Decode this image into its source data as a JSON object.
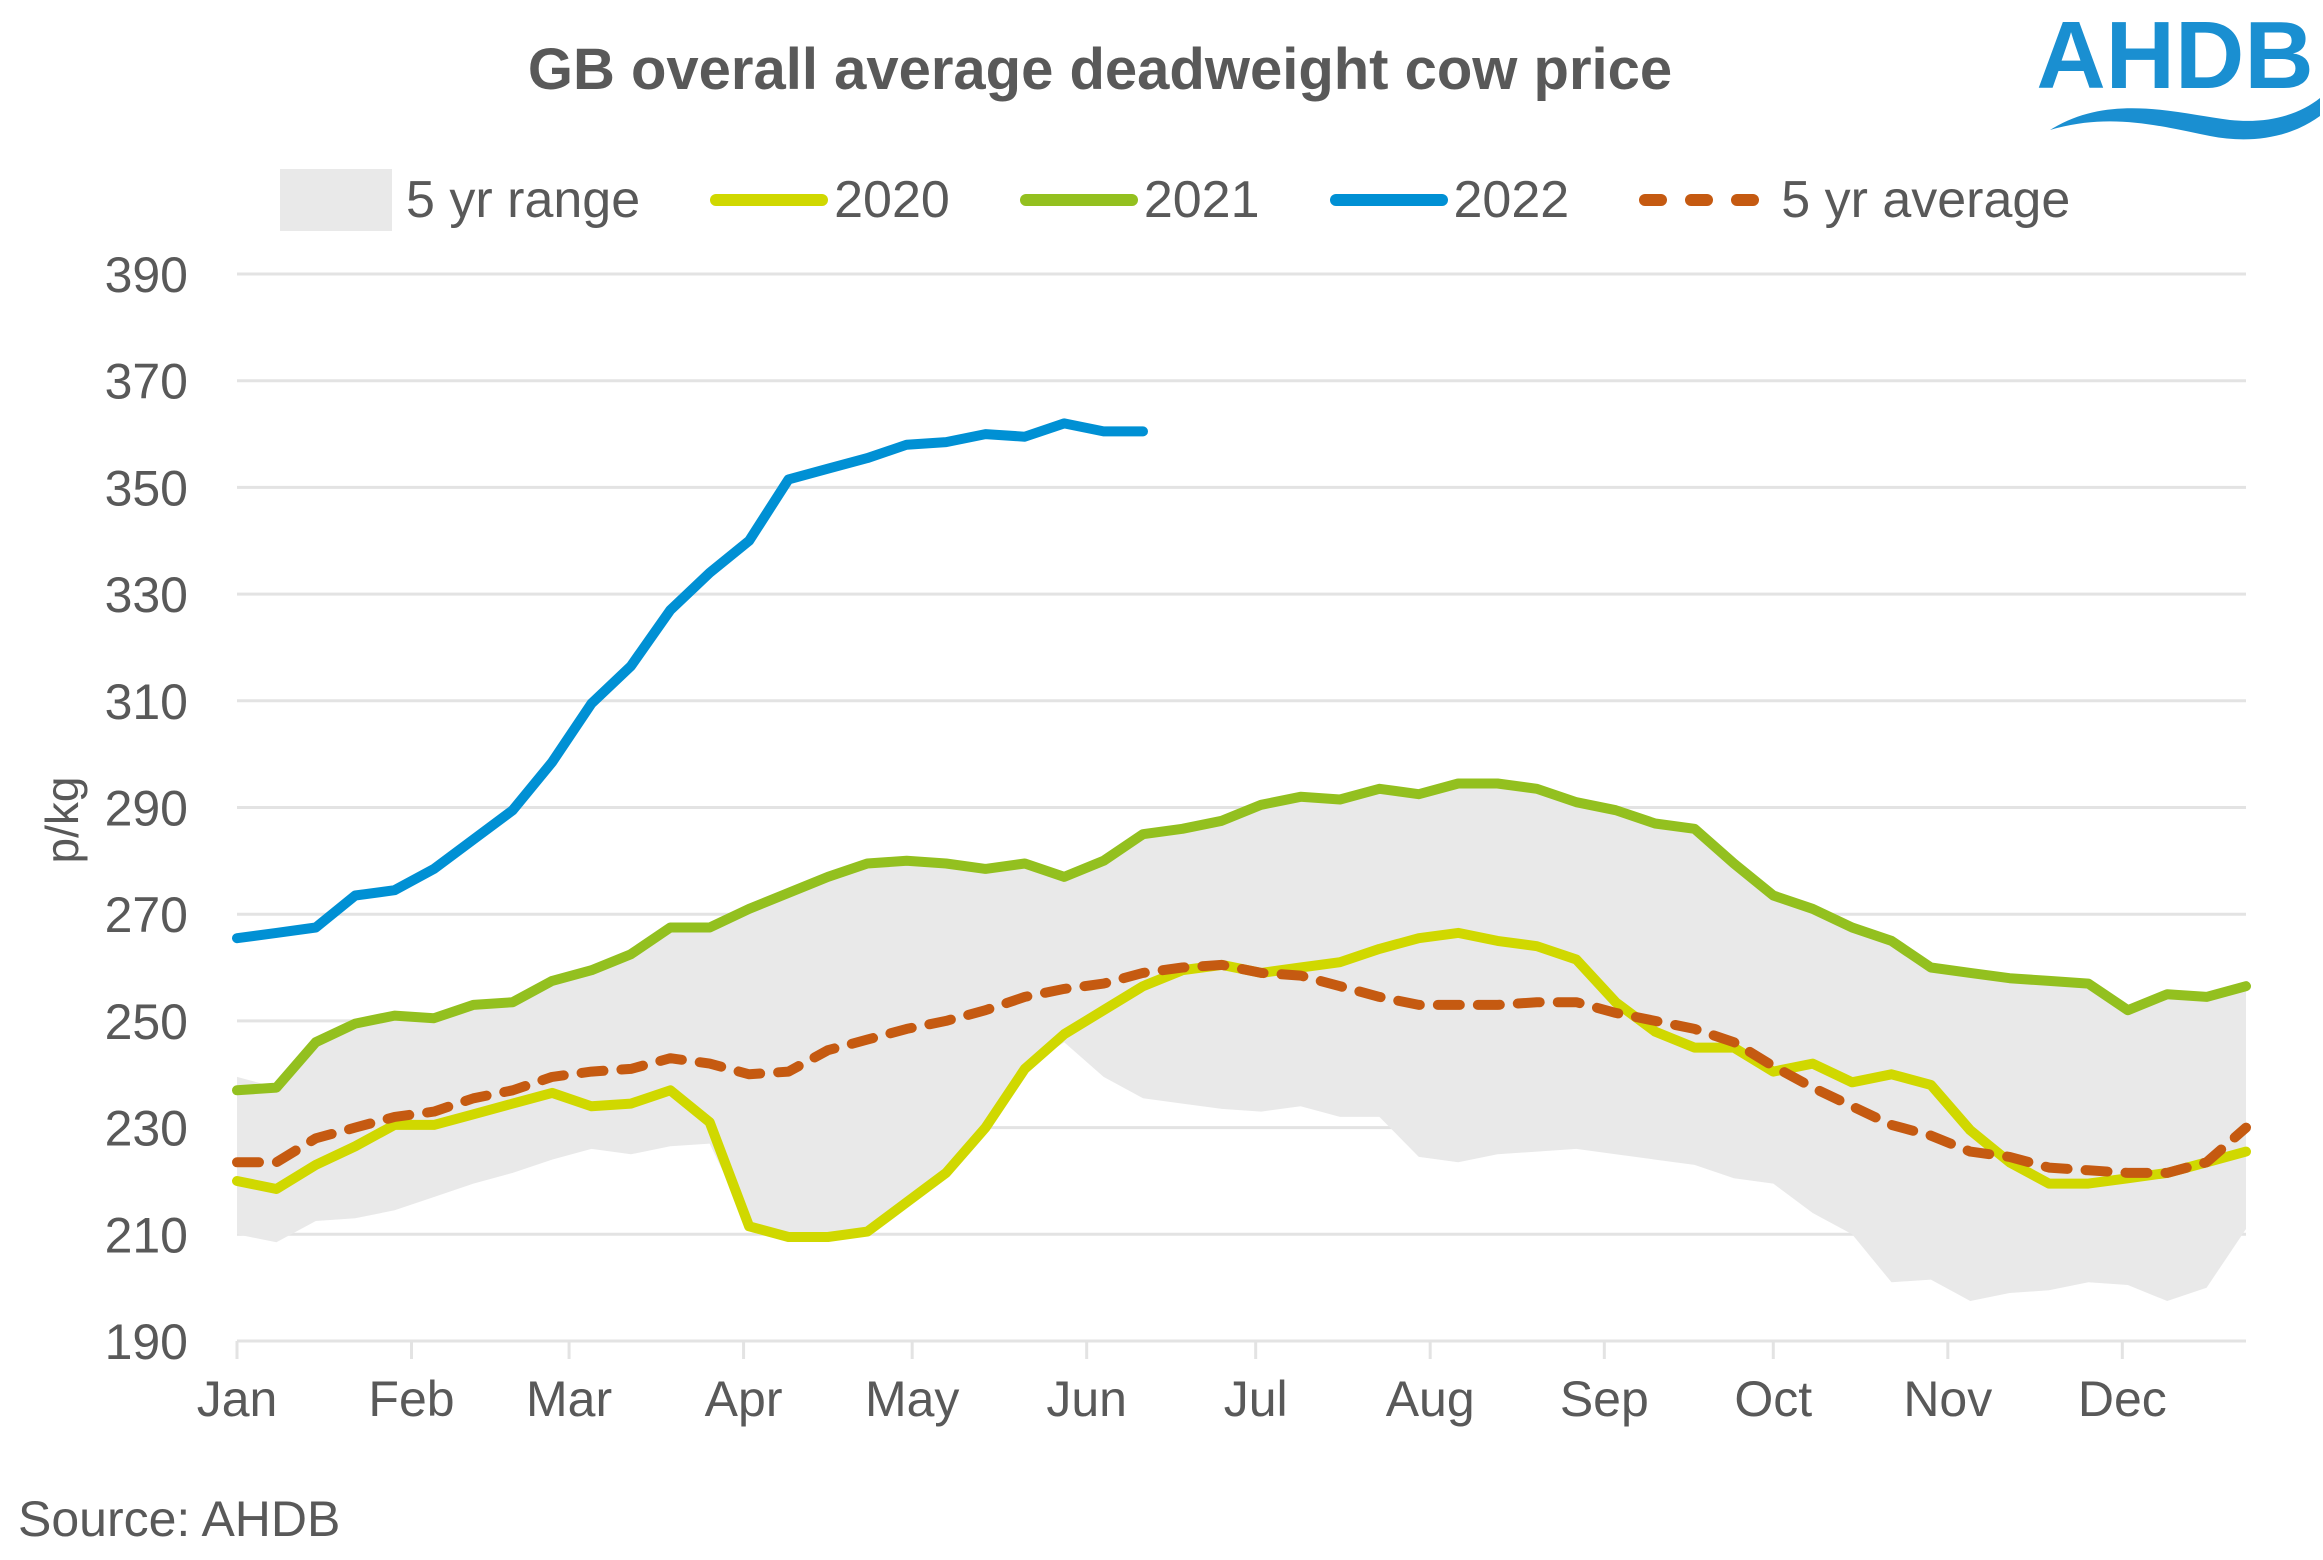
{
  "chart_data": {
    "type": "line",
    "title": "GB overall average deadweight cow price",
    "xlabel": "",
    "ylabel": "p/kg",
    "ylim": [
      190,
      390
    ],
    "yticks": [
      190,
      210,
      230,
      250,
      270,
      290,
      310,
      330,
      350,
      370,
      390
    ],
    "x_axis_labels": [
      "Jan",
      "Feb",
      "Mar",
      "Apr",
      "May",
      "Jun",
      "Jul",
      "Aug",
      "Sep",
      "Oct",
      "Nov",
      "Dec"
    ],
    "x_unit": "week of year",
    "weeks": 52,
    "grid": "horizontal",
    "legend_position": "top",
    "legend": [
      "5 yr range",
      "2020",
      "2021",
      "2022",
      "5 yr average"
    ],
    "series": [
      {
        "name": "5 yr range",
        "type": "area",
        "color": "#e9e9e9",
        "lower": [
          210,
          208.5,
          212.5,
          213,
          214.5,
          217,
          219.5,
          221.5,
          224,
          226,
          225,
          226.5,
          227,
          211.5,
          209.5,
          209.5,
          210.5,
          216,
          221.5,
          230,
          241,
          246,
          239.5,
          235.5,
          234.5,
          233.5,
          233,
          234,
          232,
          232,
          224.5,
          223.5,
          225,
          225.5,
          226,
          225,
          224,
          223,
          220.5,
          219.5,
          214,
          210,
          201,
          201.5,
          197.5,
          199,
          199.5,
          201,
          200.5,
          197.5,
          200,
          211
        ],
        "upper": [
          239.5,
          237.5,
          246,
          249.5,
          251,
          250.5,
          253,
          253.5,
          257.5,
          259.5,
          262.5,
          267.5,
          267.5,
          271,
          274,
          277,
          279.5,
          280,
          279.5,
          278.5,
          279.5,
          277,
          280,
          285,
          286,
          287.5,
          290.5,
          292,
          291.5,
          293.5,
          292.5,
          294.5,
          294.5,
          293.5,
          291,
          289.5,
          287,
          286,
          279.5,
          273.5,
          271,
          267.5,
          265,
          260,
          259,
          258,
          257.5,
          257,
          252,
          255,
          254.5,
          256.5
        ]
      },
      {
        "name": "2020",
        "type": "line",
        "color": "#d0d800",
        "values": [
          220,
          218.5,
          223,
          226.5,
          230.5,
          230.5,
          232.5,
          234.5,
          236.5,
          234,
          234.5,
          237,
          231,
          211.5,
          209.5,
          209.5,
          210.5,
          216,
          221.5,
          230,
          241,
          247.5,
          252,
          256.5,
          259.5,
          260.5,
          259,
          260,
          261,
          263.5,
          265.5,
          266.5,
          265,
          264,
          261.5,
          253.5,
          248,
          245,
          245,
          240.5,
          242,
          238.5,
          240,
          238,
          229.5,
          223.5,
          219.5,
          219.5,
          220.5,
          221.5,
          223.5,
          225.5
        ]
      },
      {
        "name": "2021",
        "type": "line",
        "color": "#93c01f",
        "values": [
          237,
          237.5,
          246,
          249.5,
          251,
          250.5,
          253,
          253.5,
          257.5,
          259.5,
          262.5,
          267.5,
          267.5,
          271,
          274,
          277,
          279.5,
          280,
          279.5,
          278.5,
          279.5,
          277,
          280,
          285,
          286,
          287.5,
          290.5,
          292,
          291.5,
          293.5,
          292.5,
          294.5,
          294.5,
          293.5,
          291,
          289.5,
          287,
          286,
          279.5,
          273.5,
          271,
          267.5,
          265,
          260,
          259,
          258,
          257.5,
          257,
          252,
          255,
          254.5,
          256.5
        ]
      },
      {
        "name": "2022",
        "type": "line",
        "color": "#0090d4",
        "values": [
          265.5,
          266.5,
          267.5,
          273.5,
          274.5,
          278.5,
          284,
          289.5,
          298.5,
          309.5,
          316.5,
          327,
          334,
          340,
          351.5,
          353.5,
          355.5,
          358,
          358.5,
          360,
          359.5,
          362,
          360.5,
          360.5
        ]
      },
      {
        "name": "5 yr average",
        "type": "line",
        "style": "dashed",
        "color": "#c55a11",
        "values": [
          223.5,
          223.5,
          228,
          230,
          232,
          233,
          235.5,
          237,
          239.5,
          240.5,
          241,
          243,
          242,
          240,
          240.5,
          244.5,
          246.5,
          248.5,
          250,
          252,
          254.5,
          256,
          257,
          259,
          260,
          260.5,
          259,
          258.5,
          256.5,
          254.5,
          253,
          253,
          253,
          253.5,
          253.5,
          251.5,
          250,
          248.5,
          246,
          241.5,
          237.5,
          234,
          230.5,
          228.5,
          225.5,
          224.5,
          222.5,
          222,
          221.5,
          221.5,
          223.5,
          230
        ]
      }
    ]
  },
  "header": {
    "title": "GB overall average deadweight cow price",
    "logo_text": "AHDB",
    "logo_color": "#1a8fd1"
  },
  "footer": {
    "source": "Source: AHDB"
  }
}
